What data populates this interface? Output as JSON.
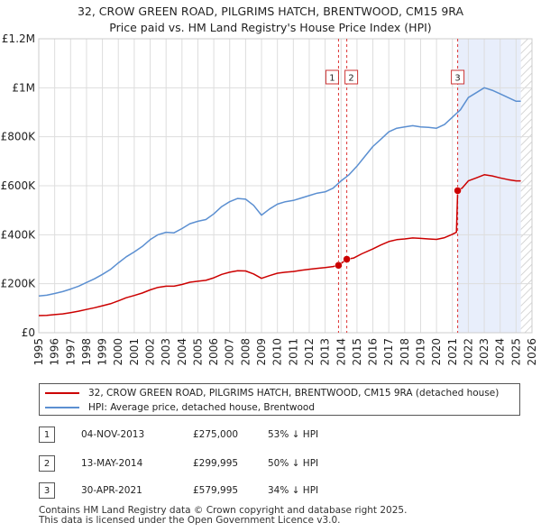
{
  "title": {
    "line1": "32, CROW GREEN ROAD, PILGRIMS HATCH, BRENTWOOD, CM15 9RA",
    "line2": "Price paid vs. HM Land Registry's House Price Index (HPI)"
  },
  "chart_data": {
    "type": "line",
    "xlim": [
      1995,
      2026
    ],
    "ylim": [
      0,
      1200000
    ],
    "y_ticks": [
      {
        "value": 0,
        "label": "£0"
      },
      {
        "value": 200000,
        "label": "£200K"
      },
      {
        "value": 400000,
        "label": "£400K"
      },
      {
        "value": 600000,
        "label": "£600K"
      },
      {
        "value": 800000,
        "label": "£800K"
      },
      {
        "value": 1000000,
        "label": "£1M"
      },
      {
        "value": 1200000,
        "label": "£1.2M"
      }
    ],
    "x_ticks": [
      "1995",
      "1996",
      "1997",
      "1998",
      "1999",
      "2000",
      "2001",
      "2002",
      "2003",
      "2004",
      "2005",
      "2006",
      "2007",
      "2008",
      "2009",
      "2010",
      "2011",
      "2012",
      "2013",
      "2014",
      "2015",
      "2016",
      "2017",
      "2018",
      "2019",
      "2020",
      "2021",
      "2022",
      "2023",
      "2024",
      "2025",
      "2026"
    ],
    "grid": true,
    "shaded_region": {
      "from": 2021.33,
      "to": 2025.3
    },
    "hatched_region": {
      "from": 2025.3,
      "to": 2026
    },
    "series": [
      {
        "name": "HPI: Average price, detached house, Brentwood",
        "color": "#5b8fd1",
        "x": [
          1995.0,
          1995.5,
          1996.0,
          1996.5,
          1997.0,
          1997.5,
          1998.0,
          1998.5,
          1999.0,
          1999.5,
          2000.0,
          2000.5,
          2001.0,
          2001.5,
          2002.0,
          2002.5,
          2003.0,
          2003.5,
          2004.0,
          2004.5,
          2005.0,
          2005.5,
          2006.0,
          2006.5,
          2007.0,
          2007.5,
          2008.0,
          2008.5,
          2009.0,
          2009.5,
          2010.0,
          2010.5,
          2011.0,
          2011.5,
          2012.0,
          2012.5,
          2013.0,
          2013.5,
          2014.0,
          2014.5,
          2015.0,
          2015.5,
          2016.0,
          2016.5,
          2017.0,
          2017.5,
          2018.0,
          2018.5,
          2019.0,
          2019.5,
          2020.0,
          2020.5,
          2021.0,
          2021.5,
          2022.0,
          2022.5,
          2023.0,
          2023.5,
          2024.0,
          2024.5,
          2025.0,
          2025.3
        ],
        "values": [
          150000,
          153000,
          160000,
          168000,
          178000,
          190000,
          205000,
          220000,
          238000,
          258000,
          285000,
          310000,
          330000,
          352000,
          380000,
          400000,
          410000,
          408000,
          425000,
          445000,
          455000,
          462000,
          485000,
          515000,
          535000,
          548000,
          545000,
          520000,
          480000,
          505000,
          525000,
          535000,
          540000,
          550000,
          560000,
          570000,
          575000,
          590000,
          620000,
          645000,
          680000,
          720000,
          760000,
          790000,
          820000,
          835000,
          840000,
          845000,
          840000,
          838000,
          835000,
          850000,
          880000,
          910000,
          960000,
          980000,
          1000000,
          990000,
          975000,
          960000,
          945000,
          945000
        ]
      },
      {
        "name": "32, CROW GREEN ROAD, PILGRIMS HATCH, BRENTWOOD, CM15 9RA (detached house)",
        "color": "#cc0000",
        "x": [
          1995.0,
          1995.5,
          1996.0,
          1996.5,
          1997.0,
          1997.5,
          1998.0,
          1998.5,
          1999.0,
          1999.5,
          2000.0,
          2000.5,
          2001.0,
          2001.5,
          2002.0,
          2002.5,
          2003.0,
          2003.5,
          2004.0,
          2004.5,
          2005.0,
          2005.5,
          2006.0,
          2006.5,
          2007.0,
          2007.5,
          2008.0,
          2008.5,
          2009.0,
          2009.5,
          2010.0,
          2010.5,
          2011.0,
          2011.5,
          2012.0,
          2012.5,
          2013.0,
          2013.5,
          2013.84,
          2014.0,
          2014.36,
          2014.8,
          2015.3,
          2016.0,
          2016.5,
          2017.0,
          2017.5,
          2018.0,
          2018.5,
          2019.0,
          2019.5,
          2020.0,
          2020.5,
          2021.0,
          2021.25,
          2021.33,
          2021.6,
          2022.0,
          2022.5,
          2023.0,
          2023.5,
          2024.0,
          2024.5,
          2025.0,
          2025.3
        ],
        "values": [
          70000,
          71000,
          74000,
          77000,
          82000,
          88000,
          95000,
          102000,
          110000,
          118000,
          130000,
          143000,
          152000,
          162000,
          175000,
          185000,
          190000,
          190000,
          197000,
          206000,
          210000,
          214000,
          224000,
          238000,
          247000,
          253000,
          252000,
          240000,
          222000,
          233000,
          243000,
          247000,
          250000,
          255000,
          259000,
          263000,
          266000,
          270000,
          275000,
          283000,
          299995,
          305000,
          322000,
          342000,
          358000,
          372000,
          380000,
          383000,
          387000,
          385000,
          383000,
          381000,
          388000,
          402000,
          410000,
          579995,
          590000,
          620000,
          632000,
          645000,
          640000,
          632000,
          625000,
          620000,
          620000
        ]
      }
    ],
    "sale_markers": [
      {
        "id": "1",
        "x": 2013.84,
        "value": 275000
      },
      {
        "id": "2",
        "x": 2014.36,
        "value": 299995
      },
      {
        "id": "3",
        "x": 2021.33,
        "value": 579995
      }
    ]
  },
  "legend": {
    "property_label": "32, CROW GREEN ROAD, PILGRIMS HATCH, BRENTWOOD, CM15 9RA (detached house)",
    "hpi_label": "HPI: Average price, detached house, Brentwood",
    "property_color": "#cc0000",
    "hpi_color": "#5b8fd1"
  },
  "sales": [
    {
      "num": "1",
      "date": "04-NOV-2013",
      "price": "£275,000",
      "hpi": "53% ↓ HPI"
    },
    {
      "num": "2",
      "date": "13-MAY-2014",
      "price": "£299,995",
      "hpi": "50% ↓ HPI"
    },
    {
      "num": "3",
      "date": "30-APR-2021",
      "price": "£579,995",
      "hpi": "34% ↓ HPI"
    }
  ],
  "footer": {
    "line1": "Contains HM Land Registry data © Crown copyright and database right 2025.",
    "line2": "This data is licensed under the Open Government Licence v3.0."
  }
}
